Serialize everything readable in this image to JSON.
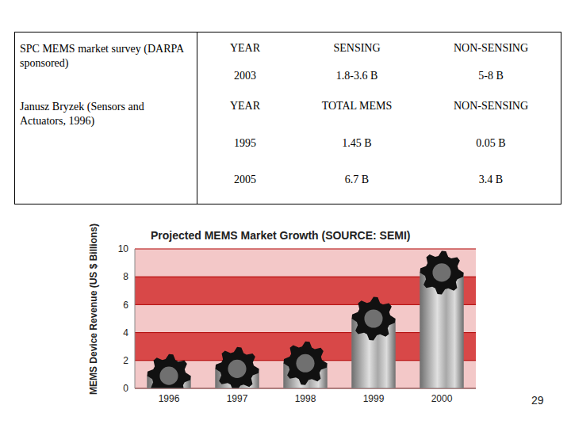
{
  "page_number": "29",
  "table": {
    "sections": [
      {
        "source": "SPC MEMS market survey (DARPA sponsored)",
        "header": [
          "YEAR",
          "SENSING",
          "NON-SENSING"
        ],
        "rows": [
          [
            "2003",
            "1.8-3.6 B",
            "5-8 B"
          ]
        ]
      },
      {
        "source": "Janusz Bryzek (Sensors and Actuators, 1996)",
        "header": [
          "YEAR",
          "TOTAL MEMS",
          "NON-SENSING"
        ],
        "rows": [
          [
            "1995",
            "1.45 B",
            "0.05 B"
          ],
          [
            "2005",
            "6.7 B",
            "3.4 B"
          ]
        ]
      }
    ]
  },
  "chart_data": {
    "type": "bar",
    "title": "Projected MEMS Market Growth (SOURCE: SEMI)",
    "y_label": "MEMS Device Revenue (US $ Billions)",
    "categories": [
      "1996",
      "1997",
      "1998",
      "1999",
      "2000"
    ],
    "values": [
      0.9,
      1.4,
      1.8,
      5.0,
      8.3
    ],
    "color": "#a8a8a8",
    "ylim": [
      0,
      10
    ],
    "yticks": [
      0,
      2,
      4,
      6,
      8,
      10
    ],
    "grid": true
  }
}
